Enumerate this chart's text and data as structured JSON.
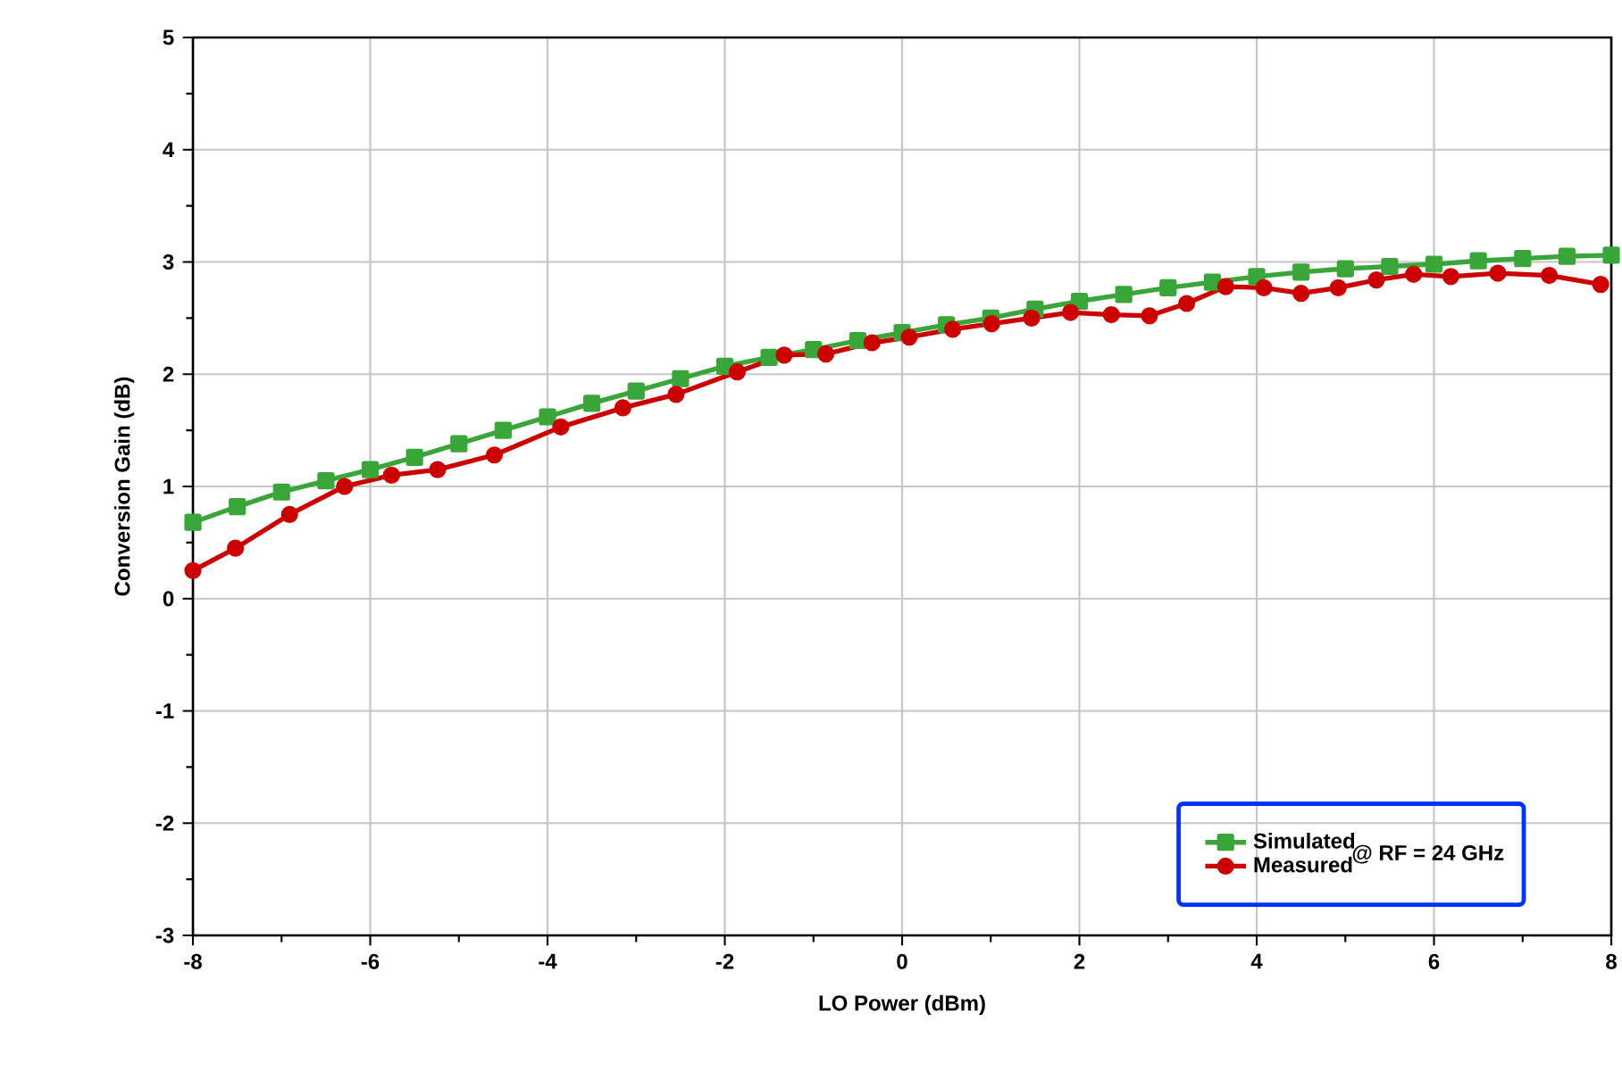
{
  "chart_data": {
    "type": "line",
    "xlabel": "LO Power (dBm)",
    "ylabel": "Conversion Gain (dB)",
    "annotations": [
      "@ RF = 24 GHz"
    ],
    "xlim": [
      -8,
      8
    ],
    "ylim": [
      -3,
      5
    ],
    "xticks": [
      -8,
      -6,
      -4,
      -2,
      0,
      2,
      4,
      6,
      8
    ],
    "yticks": [
      -3,
      -2,
      -1,
      0,
      1,
      2,
      3,
      4,
      5
    ],
    "grid": true,
    "legend": "bottom right",
    "line_style": "solid",
    "series": [
      {
        "name": "Simulated",
        "color": "#3aa63a",
        "marker": "square",
        "x": [
          -8,
          -7.5,
          -7,
          -6.5,
          -6,
          -5.5,
          -5,
          -4.5,
          -4,
          -3.5,
          -3,
          -2.5,
          -2,
          -1.5,
          -1,
          -0.5,
          0,
          0.5,
          1,
          1.5,
          2,
          2.5,
          3,
          3.5,
          4,
          4.5,
          5,
          5.5,
          6,
          6.5,
          7,
          7.5,
          8
        ],
        "values": [
          0.68,
          0.82,
          0.95,
          1.05,
          1.15,
          1.26,
          1.38,
          1.5,
          1.62,
          1.74,
          1.85,
          1.96,
          2.07,
          2.15,
          2.22,
          2.3,
          2.37,
          2.44,
          2.5,
          2.58,
          2.65,
          2.71,
          2.77,
          2.82,
          2.87,
          2.91,
          2.94,
          2.96,
          2.98,
          3.01,
          3.03,
          3.05,
          3.06
        ]
      },
      {
        "name": "Measured",
        "color": "#cc0000",
        "marker": "circle",
        "x": [
          -8,
          -7.52,
          -6.91,
          -6.29,
          -5.76,
          -5.24,
          -4.6,
          -3.85,
          -3.15,
          -2.55,
          -1.86,
          -1.33,
          -0.86,
          -0.34,
          0.08,
          0.57,
          1.01,
          1.46,
          1.9,
          2.36,
          2.79,
          3.21,
          3.65,
          4.08,
          4.5,
          4.92,
          5.35,
          5.77,
          6.19,
          6.72,
          7.3,
          7.88
        ],
        "values": [
          0.25,
          0.45,
          0.75,
          1.0,
          1.1,
          1.15,
          1.28,
          1.53,
          1.7,
          1.82,
          2.02,
          2.17,
          2.18,
          2.28,
          2.33,
          2.4,
          2.45,
          2.5,
          2.55,
          2.53,
          2.52,
          2.63,
          2.78,
          2.77,
          2.72,
          2.77,
          2.84,
          2.89,
          2.87,
          2.9,
          2.88,
          2.8
        ]
      }
    ]
  }
}
